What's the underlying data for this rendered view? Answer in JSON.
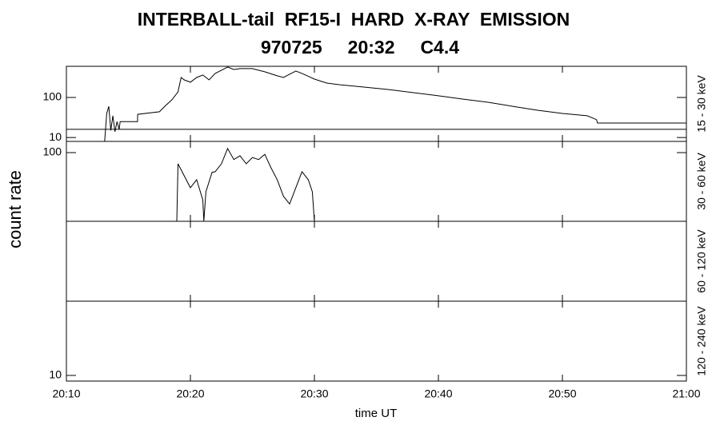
{
  "chart_data": {
    "type": "line",
    "title": "INTERBALL-tail  RF15-I  HARD  X-RAY  EMISSION",
    "subtitle": "970725     20:32     C4.4",
    "xlabel": "time UT",
    "ylabel": "count rate",
    "xlim": [
      "20:10",
      "21:00"
    ],
    "xticks": [
      "20:10",
      "20:20",
      "20:30",
      "20:40",
      "20:50",
      "21:00"
    ],
    "log_y": true,
    "color": "#000000",
    "panels": [
      {
        "label": "15 - 30 keV",
        "ylim": [
          8,
          600
        ],
        "yticks": [
          10,
          100
        ],
        "background": 16,
        "x": [
          "20:13:05",
          "20:13:15",
          "20:13:25",
          "20:13:35",
          "20:13:45",
          "20:13:55",
          "20:14:05",
          "20:14:15",
          "20:14:20",
          "20:15:44",
          "20:15:45",
          "20:17:30",
          "20:18:00",
          "20:18:30",
          "20:19:00",
          "20:19:15",
          "20:19:30",
          "20:20:00",
          "20:20:30",
          "20:21:00",
          "20:21:30",
          "20:22:00",
          "20:22:30",
          "20:23:00",
          "20:23:30",
          "20:24:00",
          "20:25:00",
          "20:26:00",
          "20:27:00",
          "20:27:30",
          "20:28:00",
          "20:28:30",
          "20:29:00",
          "20:30:00",
          "20:31:00",
          "20:32:00",
          "20:34:00",
          "20:36:00",
          "20:38:00",
          "20:40:00",
          "20:42:00",
          "20:44:00",
          "20:46:00",
          "20:48:00",
          "20:50:00",
          "20:52:00",
          "20:52:45",
          "20:52:50",
          "21:00:00"
        ],
        "values": [
          8,
          40,
          60,
          15,
          35,
          14,
          25,
          16,
          25,
          25,
          38,
          44,
          63,
          87,
          138,
          316,
          275,
          240,
          316,
          363,
          275,
          398,
          479,
          575,
          500,
          525,
          525,
          437,
          347,
          316,
          380,
          457,
          398,
          288,
          229,
          209,
          182,
          158,
          132,
          110,
          91,
          76,
          60,
          48,
          40,
          35,
          28,
          23,
          23
        ]
      },
      {
        "label": "30 - 60 keV",
        "ylim": [
          20,
          130
        ],
        "yticks": [
          100
        ],
        "x": [
          "20:18:54",
          "20:19:00",
          "20:19:30",
          "20:20:00",
          "20:20:30",
          "20:21:00",
          "20:21:05",
          "20:21:15",
          "20:21:45",
          "20:22:00",
          "20:22:30",
          "20:23:00",
          "20:23:30",
          "20:24:00",
          "20:24:30",
          "20:25:00",
          "20:25:30",
          "20:26:00",
          "20:26:30",
          "20:27:00",
          "20:27:30",
          "20:28:00",
          "20:28:30",
          "20:29:00",
          "20:29:30",
          "20:29:50",
          "20:30:00"
        ],
        "values": [
          20,
          77,
          58,
          44,
          53,
          33,
          20,
          40,
          63,
          64,
          77,
          110,
          85,
          93,
          77,
          89,
          85,
          96,
          70,
          53,
          36,
          30,
          44,
          64,
          53,
          40,
          20
        ]
      },
      {
        "label": "60 - 120 keV"
      },
      {
        "label": "120 - 240 keV",
        "ylim": [
          9,
          40
        ],
        "yticks": [
          10
        ]
      }
    ]
  }
}
